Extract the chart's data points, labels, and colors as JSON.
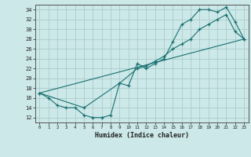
{
  "title": "",
  "xlabel": "Humidex (Indice chaleur)",
  "xlim": [
    -0.5,
    23.5
  ],
  "ylim": [
    11,
    35
  ],
  "xticks": [
    0,
    1,
    2,
    3,
    4,
    5,
    6,
    7,
    8,
    9,
    10,
    11,
    12,
    13,
    14,
    15,
    16,
    17,
    18,
    19,
    20,
    21,
    22,
    23
  ],
  "yticks": [
    12,
    14,
    16,
    18,
    20,
    22,
    24,
    26,
    28,
    30,
    32,
    34
  ],
  "bg_color": "#cce8e8",
  "grid_color": "#aacccc",
  "line_color": "#1a7070",
  "line1_x": [
    0,
    1,
    2,
    3,
    4,
    5,
    6,
    7,
    8,
    9,
    10,
    11,
    12,
    13,
    14,
    15,
    16,
    17,
    18,
    19,
    20,
    21,
    22,
    23
  ],
  "line1_y": [
    17,
    16,
    14.5,
    14,
    14,
    12.5,
    12,
    12,
    12.5,
    19,
    18.5,
    23,
    22,
    23,
    24,
    27.5,
    31,
    32,
    34,
    34,
    33.5,
    34.5,
    31.5,
    28
  ],
  "line2_x": [
    0,
    5,
    9,
    11,
    12,
    13,
    14,
    15,
    16,
    17,
    18,
    19,
    20,
    21,
    22,
    23
  ],
  "line2_y": [
    17,
    14,
    19,
    22,
    22.5,
    23.5,
    24.5,
    26,
    27,
    28,
    30,
    31,
    32,
    33,
    29.5,
    28
  ],
  "line3_x": [
    0,
    23
  ],
  "line3_y": [
    17,
    28
  ]
}
